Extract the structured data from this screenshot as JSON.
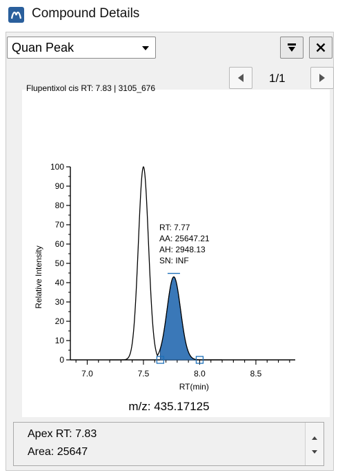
{
  "window": {
    "title": "Compound Details"
  },
  "toolbar": {
    "view_select": "Quan Peak",
    "pin_icon": "pin-down-icon",
    "close_icon": "close-icon"
  },
  "pager": {
    "indicator": "1/1",
    "prev_icon": "triangle-left-icon",
    "next_icon": "triangle-right-icon"
  },
  "chart_title": "Flupentixol cis  RT: 7.83 | 3105_676",
  "mz_label": "m/z: 435.17125",
  "annotation": [
    "RT: 7.77",
    "AA: 25647.21",
    "AH: 2948.13",
    "SN: INF"
  ],
  "info": {
    "apex": "Apex RT: 7.83",
    "area": "Area: 25647"
  },
  "colors": {
    "accent": "#2a5f9c",
    "peak_fill": "#3a78b8"
  },
  "chart_data": {
    "type": "line",
    "title": "Flupentixol cis  RT: 7.83 | 3105_676",
    "xlabel": "RT(min)",
    "ylabel": "Relative Intensity",
    "xlim": [
      6.85,
      8.85
    ],
    "ylim": [
      0,
      100
    ],
    "x_ticks": [
      "7.0",
      "7.5",
      "8.0",
      "8.5"
    ],
    "y_ticks": [
      "0",
      "10",
      "20",
      "30",
      "40",
      "50",
      "60",
      "70",
      "80",
      "90",
      "100"
    ],
    "series": [
      {
        "peak_center": 7.5,
        "peak_height": 100,
        "peak_sigma": 0.045
      },
      {
        "peak_center": 7.77,
        "peak_height": 43,
        "peak_sigma": 0.06,
        "shaded": true,
        "integration_start": 7.65,
        "integration_end": 8.0
      }
    ]
  }
}
